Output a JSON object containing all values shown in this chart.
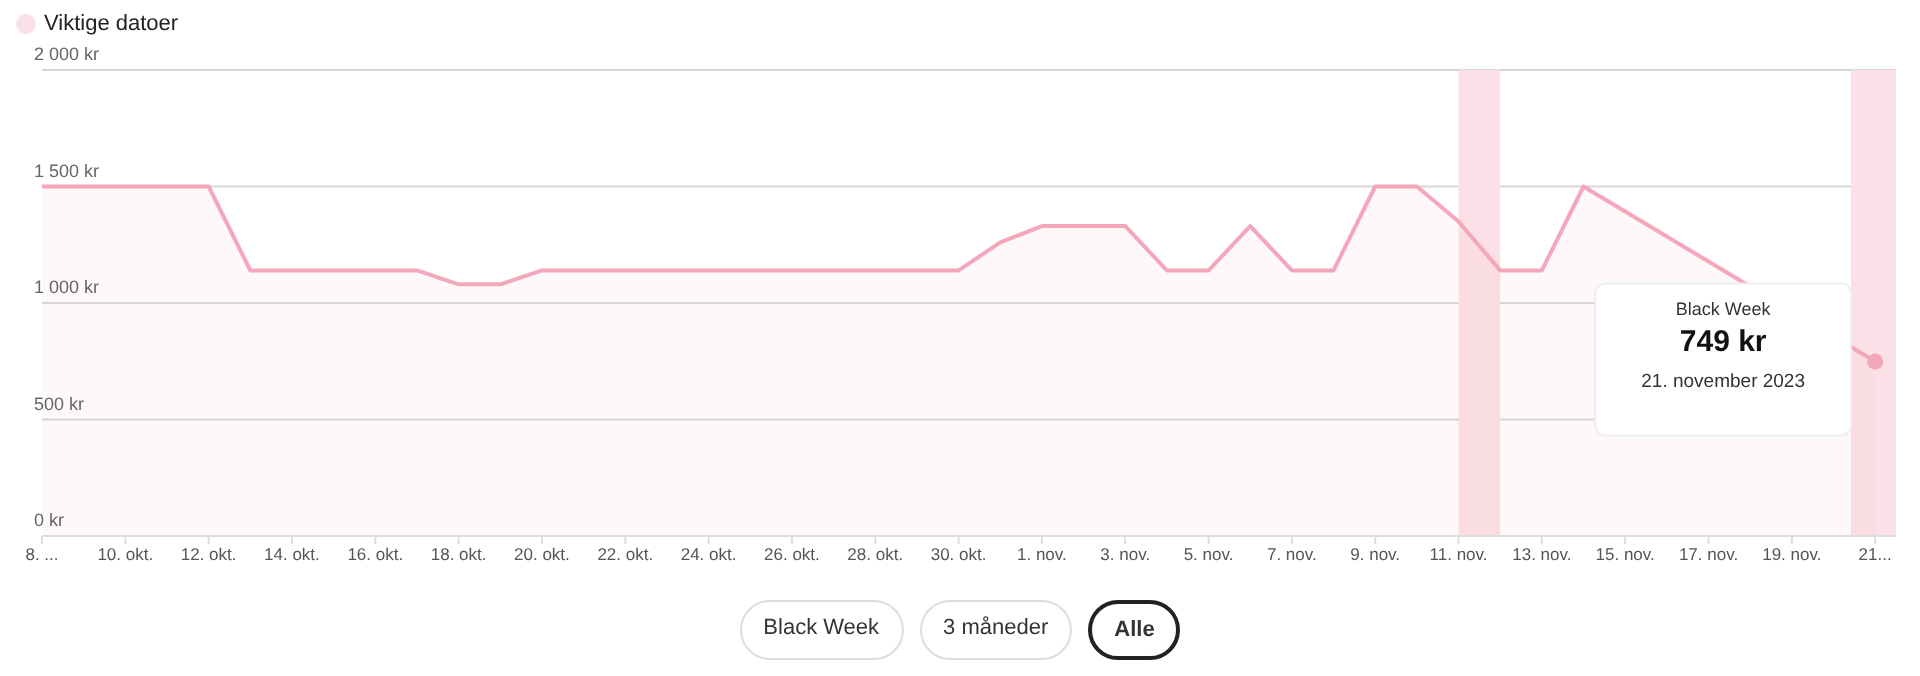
{
  "chart_data": {
    "type": "area",
    "x": [
      "2023-10-08",
      "2023-10-12",
      "2023-10-13",
      "2023-10-17",
      "2023-10-18",
      "2023-10-19",
      "2023-10-20",
      "2023-10-30",
      "2023-10-31",
      "2023-11-01",
      "2023-11-02",
      "2023-11-03",
      "2023-11-04",
      "2023-11-05",
      "2023-11-06",
      "2023-11-07",
      "2023-11-08",
      "2023-11-09",
      "2023-11-10",
      "2023-11-11",
      "2023-11-12",
      "2023-11-13",
      "2023-11-14",
      "2023-11-15",
      "2023-11-21"
    ],
    "series": [
      {
        "color": "#f4a6ba",
        "values": [
          1500,
          1500,
          1140,
          1140,
          1080,
          1080,
          1140,
          1140,
          1260,
          1330,
          1330,
          1330,
          1140,
          1140,
          1330,
          1140,
          1140,
          1500,
          1500,
          1350,
          1140,
          1140,
          1500,
          null,
          749
        ]
      }
    ],
    "xlim": [
      "2023-10-08",
      "2023-11-21T12:00"
    ],
    "xticks": [
      {
        "value": "2023-10-08",
        "label": "8. ..."
      },
      {
        "value": "2023-10-10",
        "label": "10. okt."
      },
      {
        "value": "2023-10-12",
        "label": "12. okt."
      },
      {
        "value": "2023-10-14",
        "label": "14. okt."
      },
      {
        "value": "2023-10-16",
        "label": "16. okt."
      },
      {
        "value": "2023-10-18",
        "label": "18. okt."
      },
      {
        "value": "2023-10-20",
        "label": "20. okt."
      },
      {
        "value": "2023-10-22",
        "label": "22. okt."
      },
      {
        "value": "2023-10-24",
        "label": "24. okt."
      },
      {
        "value": "2023-10-26",
        "label": "26. okt."
      },
      {
        "value": "2023-10-28",
        "label": "28. okt."
      },
      {
        "value": "2023-10-30",
        "label": "30. okt."
      },
      {
        "value": "2023-11-01",
        "label": "1. nov."
      },
      {
        "value": "2023-11-03",
        "label": "3. nov."
      },
      {
        "value": "2023-11-05",
        "label": "5. nov."
      },
      {
        "value": "2023-11-07",
        "label": "7. nov."
      },
      {
        "value": "2023-11-09",
        "label": "9. nov."
      },
      {
        "value": "2023-11-11",
        "label": "11. nov."
      },
      {
        "value": "2023-11-13",
        "label": "13. nov."
      },
      {
        "value": "2023-11-15",
        "label": "15. nov."
      },
      {
        "value": "2023-11-17",
        "label": "17. nov."
      },
      {
        "value": "2023-11-19",
        "label": "19. nov."
      },
      {
        "value": "2023-11-21",
        "label": "21..."
      }
    ],
    "ylim": [
      0,
      2000
    ],
    "yticks": [
      {
        "value": 0,
        "label": "0 kr"
      },
      {
        "value": 500,
        "label": "500 kr"
      },
      {
        "value": 1000,
        "label": "1 000 kr"
      },
      {
        "value": 1500,
        "label": "1 500 kr"
      },
      {
        "value": 2000,
        "label": "2 000 kr"
      }
    ],
    "grid": "y",
    "legend_title": "Viktige datoer",
    "bands": [
      {
        "axis": "x",
        "from": "2023-11-11",
        "to": "2023-11-12",
        "color": "#fbe1e7"
      },
      {
        "axis": "x",
        "from": "2023-11-20T10:00",
        "to": "2023-11-21T12:00",
        "color": "#fbe1e7"
      }
    ],
    "annotations": [
      "Black Week",
      "749 kr",
      "21. november 2023",
      "Black Week",
      "3 måneder",
      "Alle"
    ]
  }
}
